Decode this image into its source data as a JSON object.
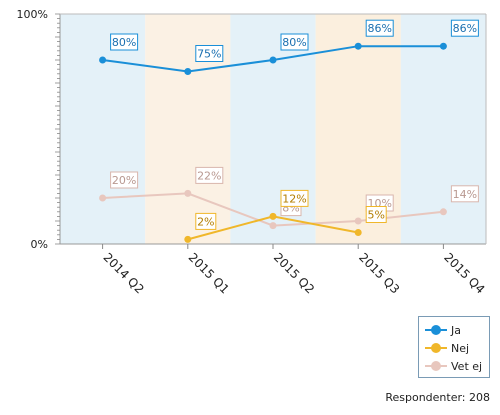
{
  "chart_data": {
    "type": "line",
    "categories": [
      "2014 Q2",
      "2015 Q1",
      "2015 Q2",
      "2015 Q3",
      "2015 Q4"
    ],
    "ylim": [
      0,
      100
    ],
    "y_ticks": [
      "0%",
      "100%"
    ],
    "series": [
      {
        "name": "Ja",
        "color": "#1a8fd8",
        "values": [
          80,
          75,
          80,
          86,
          86
        ],
        "labels": [
          "80%",
          "75%",
          "80%",
          "86%",
          "86%"
        ]
      },
      {
        "name": "Nej",
        "color": "#f0b72a",
        "values": [
          null,
          2,
          12,
          5,
          null
        ],
        "labels": [
          null,
          "2%",
          "12%",
          "5%",
          null
        ]
      },
      {
        "name": "Vet ej",
        "color": "#e8c7be",
        "values": [
          20,
          22,
          8,
          10,
          14
        ],
        "labels": [
          "20%",
          "22%",
          "8%",
          "10%",
          "14%"
        ]
      }
    ],
    "band_colors": [
      "#e4f1f8",
      "#fbf1e4",
      "#e4f1f8",
      "#fbefde",
      "#e4f1f8"
    ],
    "legend_position": "bottom-right"
  },
  "footer": {
    "text": "Respondenter: 208"
  }
}
